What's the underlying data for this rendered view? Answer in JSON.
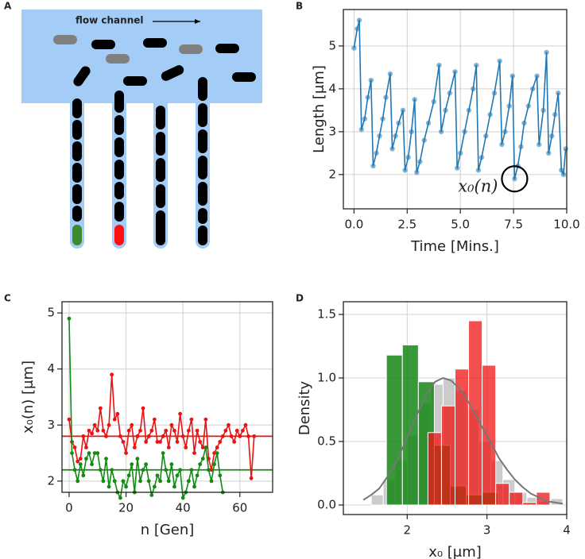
{
  "chart_data": [
    {
      "type": "diagram",
      "label": "A",
      "annotation": "flow channel"
    },
    {
      "type": "line",
      "label": "B",
      "xlabel": "Time [Mins.]",
      "ylabel": "Length [μm]",
      "color": "#1f77b4",
      "grid": true,
      "xlim": [
        -0.5,
        10
      ],
      "ylim": [
        1.2,
        5.85
      ],
      "xticks": [
        {
          "value": 0,
          "label": "0.0"
        },
        2.5,
        {
          "value": 5,
          "label": "5.0"
        },
        7.5,
        {
          "value": 10,
          "label": "10.0"
        }
      ],
      "yticks": [
        2,
        3,
        4,
        5
      ],
      "x": [
        0.0,
        0.15,
        0.25,
        0.35,
        0.5,
        0.65,
        0.8,
        0.9,
        1.05,
        1.2,
        1.35,
        1.5,
        1.7,
        1.8,
        1.95,
        2.1,
        2.3,
        2.4,
        2.55,
        2.7,
        2.85,
        2.95,
        3.1,
        3.3,
        3.5,
        3.75,
        4.0,
        4.1,
        4.3,
        4.5,
        4.75,
        4.85,
        5.0,
        5.2,
        5.4,
        5.6,
        5.75,
        5.85,
        6.0,
        6.2,
        6.4,
        6.6,
        6.85,
        6.95,
        7.1,
        7.3,
        7.45,
        7.55,
        7.7,
        7.85,
        8.0,
        8.2,
        8.4,
        8.6,
        8.7,
        8.9,
        9.05,
        9.15,
        9.3,
        9.45,
        9.6,
        9.75,
        9.85,
        9.95
      ],
      "values": [
        4.95,
        5.4,
        5.6,
        3.05,
        3.3,
        3.8,
        4.2,
        2.2,
        2.5,
        2.9,
        3.3,
        3.8,
        4.35,
        2.6,
        2.9,
        3.2,
        3.5,
        2.1,
        2.4,
        3.0,
        3.75,
        2.05,
        2.3,
        2.8,
        3.2,
        3.7,
        4.55,
        3.0,
        3.5,
        3.9,
        4.4,
        2.15,
        2.5,
        3.0,
        3.5,
        4.0,
        4.55,
        2.1,
        2.4,
        2.9,
        3.4,
        3.9,
        4.65,
        2.7,
        3.0,
        3.6,
        4.3,
        1.9,
        2.2,
        2.65,
        3.2,
        3.6,
        4.0,
        4.3,
        2.7,
        3.5,
        4.85,
        2.5,
        2.9,
        3.4,
        3.9,
        2.1,
        2.0,
        2.6
      ],
      "annotation": {
        "text": "x₀(n)",
        "x": 7.55,
        "y": 1.9
      }
    },
    {
      "type": "line",
      "label": "C",
      "xlabel": "n [Gen]",
      "ylabel": "x₀(n) [μm]",
      "grid": true,
      "xlim": [
        -2.5,
        71.5
      ],
      "ylim": [
        1.8,
        5.2
      ],
      "xticks": [
        0,
        20,
        40,
        60
      ],
      "yticks": [
        2,
        3,
        4,
        5
      ],
      "x": [
        0,
        1,
        2,
        3,
        4,
        5,
        6,
        7,
        8,
        9,
        10,
        11,
        12,
        13,
        14,
        15,
        16,
        17,
        18,
        19,
        20,
        21,
        22,
        23,
        24,
        25,
        26,
        27,
        28,
        29,
        30,
        31,
        32,
        33,
        34,
        35,
        36,
        37,
        38,
        39,
        40,
        41,
        42,
        43,
        44,
        45,
        46,
        47,
        48,
        49,
        50,
        51,
        52,
        53,
        54,
        55,
        56,
        57,
        58,
        59,
        60,
        61,
        62,
        63,
        64,
        65
      ],
      "series": [
        {
          "color": "#ee1111",
          "values": [
            3.1,
            2.7,
            2.6,
            2.35,
            2.4,
            2.8,
            2.6,
            2.9,
            2.85,
            3.0,
            2.9,
            3.3,
            2.9,
            2.8,
            3.0,
            3.9,
            3.1,
            3.2,
            2.8,
            2.7,
            2.5,
            2.9,
            3.0,
            2.6,
            2.8,
            2.9,
            3.3,
            2.7,
            2.8,
            2.9,
            3.1,
            2.7,
            2.7,
            2.8,
            2.9,
            2.6,
            3.0,
            2.9,
            2.7,
            3.2,
            2.8,
            2.6,
            2.9,
            3.1,
            2.5,
            2.9,
            2.7,
            2.6,
            3.1,
            2.4,
            2.2,
            2.5,
            2.6,
            2.7,
            2.8,
            2.9,
            3.0,
            2.8,
            2.7,
            2.9,
            2.8,
            2.9,
            3.0,
            2.8,
            2.05,
            2.8
          ]
        },
        {
          "color": "#138a13",
          "values": [
            4.9,
            2.5,
            2.2,
            2.0,
            2.3,
            2.1,
            2.4,
            2.5,
            2.3,
            2.5,
            2.5,
            2.2,
            2.0,
            2.4,
            1.9,
            2.2,
            2.0,
            1.8,
            1.7,
            2.0,
            1.9,
            2.1,
            2.3,
            1.8,
            2.4,
            2.0,
            2.2,
            2.3,
            2.0,
            1.75,
            1.9,
            2.1,
            2.0,
            2.5,
            2.2,
            2.0,
            2.3,
            1.9,
            2.1,
            2.2,
            1.7,
            1.8,
            2.0,
            2.2,
            1.9,
            2.1,
            2.3,
            2.4,
            2.6,
            2.2,
            2.0,
            2.3,
            2.5,
            2.1,
            1.8,
            null,
            null,
            null,
            null,
            null,
            null,
            null,
            null,
            null,
            null,
            null
          ]
        }
      ],
      "hlines": [
        {
          "value": 2.8,
          "color": "#ee1111"
        },
        {
          "value": 2.2,
          "color": "#138a13"
        }
      ]
    },
    {
      "type": "histogram",
      "label": "D",
      "xlabel": "x₀ [μm]",
      "ylabel": "Density",
      "grid": true,
      "xlim": [
        1.2,
        4.0
      ],
      "ylim": [
        -0.075,
        1.6
      ],
      "xticks": [
        2,
        3,
        4
      ],
      "yticks": [
        {
          "value": 0,
          "label": "0.0"
        },
        0.5,
        {
          "value": 1,
          "label": "1.0"
        },
        1.5
      ],
      "series": [
        {
          "color": "rgba(190,190,190,0.8)",
          "bins": [
            1.55,
            1.7,
            1.85,
            2.0,
            2.15,
            2.3,
            2.45,
            2.6,
            2.75,
            2.9,
            3.05,
            3.2,
            3.35,
            3.5,
            3.65,
            3.8,
            3.95
          ],
          "values": [
            0.08,
            0.2,
            0.35,
            0.55,
            0.8,
            0.95,
            1.0,
            0.9,
            0.75,
            0.5,
            0.35,
            0.2,
            0.1,
            0.06,
            0.03,
            0.05
          ]
        },
        {
          "color": "rgba(20,135,20,0.85)",
          "bins": [
            1.74,
            1.94,
            2.14,
            2.34,
            2.54,
            2.74,
            2.94,
            3.14
          ],
          "values": [
            1.18,
            1.26,
            0.97,
            0.47,
            0.15,
            0.08,
            0.1
          ]
        },
        {
          "color": "rgba(240,20,20,0.75)",
          "bins": [
            2.26,
            2.43,
            2.6,
            2.77,
            2.94,
            3.11,
            3.28,
            3.45,
            3.62,
            3.79
          ],
          "values": [
            0.57,
            0.78,
            1.07,
            1.45,
            1.1,
            0.17,
            0.1,
            0.02,
            0.1
          ]
        }
      ],
      "curve": {
        "color": "#777777",
        "x": [
          1.45,
          1.55,
          1.65,
          1.75,
          1.85,
          1.95,
          2.05,
          2.15,
          2.25,
          2.35,
          2.45,
          2.55,
          2.65,
          2.75,
          2.85,
          2.95,
          3.05,
          3.15,
          3.25,
          3.35,
          3.45,
          3.55,
          3.65,
          3.75,
          3.85,
          3.95
        ],
        "values": [
          0.04,
          0.08,
          0.13,
          0.22,
          0.32,
          0.46,
          0.61,
          0.75,
          0.88,
          0.97,
          1.0,
          0.98,
          0.92,
          0.83,
          0.72,
          0.6,
          0.49,
          0.37,
          0.28,
          0.2,
          0.14,
          0.09,
          0.06,
          0.03,
          0.02,
          0.01
        ]
      }
    }
  ]
}
